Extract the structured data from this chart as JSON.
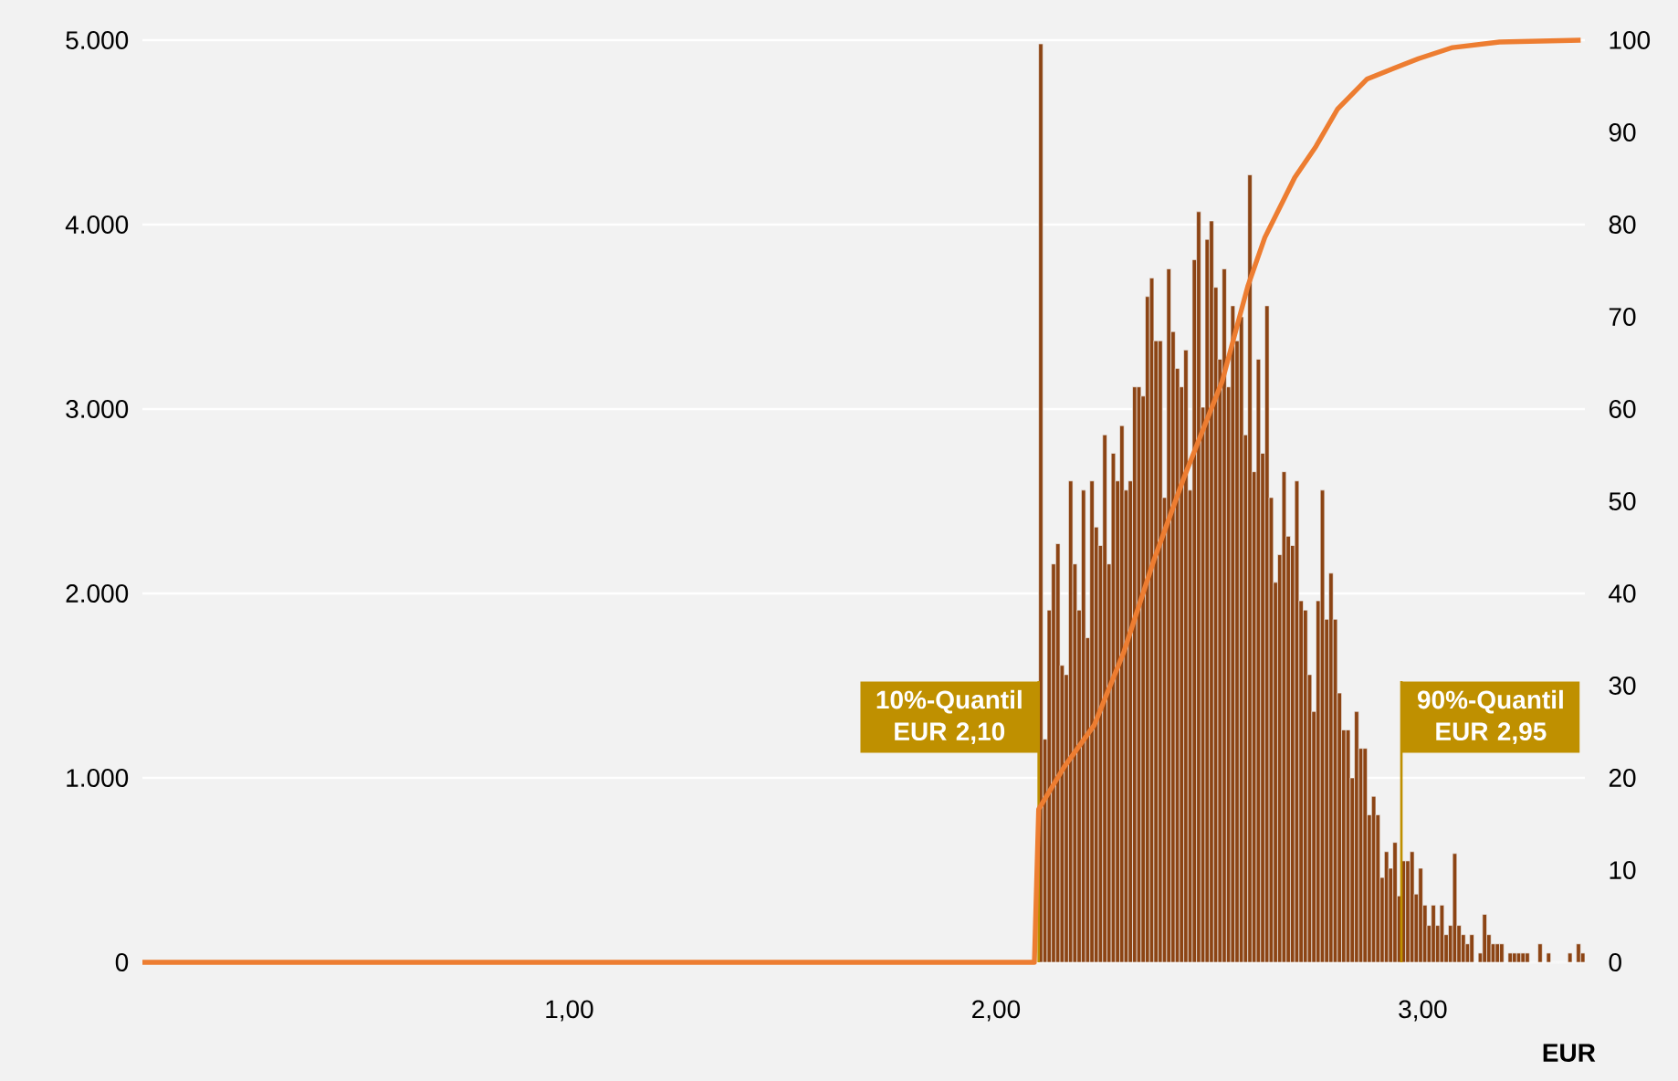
{
  "chart_data": {
    "type": "histogram",
    "xlabel": "EUR",
    "bins": [
      2.1,
      2.11,
      2.12,
      2.13,
      2.14,
      2.15,
      2.16,
      2.17,
      2.18,
      2.19,
      2.2,
      2.21,
      2.22,
      2.23,
      2.24,
      2.25,
      2.26,
      2.27,
      2.28,
      2.29,
      2.3,
      2.31,
      2.32,
      2.33,
      2.34,
      2.35,
      2.36,
      2.37,
      2.38,
      2.39,
      2.4,
      2.41,
      2.42,
      2.43,
      2.44,
      2.45,
      2.46,
      2.47,
      2.48,
      2.49,
      2.5,
      2.51,
      2.52,
      2.53,
      2.54,
      2.55,
      2.56,
      2.57,
      2.58,
      2.59,
      2.6,
      2.61,
      2.62,
      2.63,
      2.64,
      2.65,
      2.66,
      2.67,
      2.68,
      2.69,
      2.7,
      2.71,
      2.72,
      2.73,
      2.74,
      2.75,
      2.76,
      2.77,
      2.78,
      2.79,
      2.8,
      2.81,
      2.82,
      2.83,
      2.84,
      2.85,
      2.86,
      2.87,
      2.88,
      2.89,
      2.9,
      2.91,
      2.92,
      2.93,
      2.94,
      2.95,
      2.96,
      2.97,
      2.98,
      2.99,
      3.0,
      3.01,
      3.02,
      3.03,
      3.04,
      3.05,
      3.06,
      3.07,
      3.08,
      3.09,
      3.1,
      3.11,
      3.12,
      3.13,
      3.14,
      3.15,
      3.16,
      3.17,
      3.18,
      3.19,
      3.2,
      3.21,
      3.22,
      3.23,
      3.24,
      3.25,
      3.26,
      3.27,
      3.28,
      3.29,
      3.3,
      3.31,
      3.32,
      3.33,
      3.34,
      3.35,
      3.36,
      3.37,
      3.38
    ],
    "values": [
      4980,
      1210,
      1910,
      2160,
      2270,
      1610,
      1560,
      2610,
      2160,
      1910,
      2560,
      1760,
      2610,
      2360,
      2260,
      2860,
      2160,
      2760,
      2610,
      2910,
      2560,
      2610,
      3120,
      3120,
      3070,
      3610,
      3710,
      3370,
      3370,
      2520,
      3760,
      3420,
      3220,
      3120,
      3320,
      2560,
      3810,
      4070,
      3010,
      3920,
      4020,
      3660,
      3270,
      3760,
      3120,
      3560,
      3370,
      3500,
      2860,
      4270,
      2660,
      3270,
      2760,
      3560,
      2520,
      2060,
      2210,
      2660,
      2310,
      2260,
      2610,
      1960,
      1910,
      1560,
      1360,
      1960,
      2560,
      1860,
      2110,
      1860,
      1460,
      1260,
      1260,
      1000,
      1360,
      1160,
      1160,
      800,
      900,
      800,
      460,
      600,
      510,
      650,
      360,
      550,
      550,
      600,
      370,
      510,
      310,
      200,
      310,
      200,
      310,
      150,
      200,
      590,
      200,
      150,
      100,
      150,
      0,
      50,
      260,
      150,
      100,
      100,
      100,
      0,
      50,
      50,
      50,
      50,
      50,
      0,
      0,
      100,
      0,
      50,
      0,
      0,
      0,
      0,
      50,
      0,
      100,
      50
    ],
    "color": "#8c4414",
    "series": [
      {
        "type": "line",
        "axis": "y2",
        "color": "#ed7d31",
        "x": [
          0,
          2.09,
          2.1,
          2.16,
          2.23,
          2.3,
          2.37,
          2.44,
          2.53,
          2.59,
          2.63,
          2.7,
          2.75,
          2.8,
          2.87,
          2.99,
          3.07,
          3.18,
          3.37
        ],
        "values": [
          0,
          0,
          16.6,
          21.2,
          25.7,
          33.7,
          43.6,
          52.5,
          63,
          73.3,
          78.6,
          85.1,
          88.5,
          92.5,
          95.8,
          98,
          99.2,
          99.8,
          100
        ]
      }
    ],
    "xlim": [
      0,
      3.38
    ],
    "xticks": [
      {
        "value": 1,
        "label": "1,00"
      },
      {
        "value": 2,
        "label": "2,00"
      },
      {
        "value": 3,
        "label": "3,00"
      }
    ],
    "ylim": [
      0,
      5000
    ],
    "yticks": [
      0,
      {
        "value": 1000,
        "label": "1.000"
      },
      {
        "value": 2000,
        "label": "2.000"
      },
      {
        "value": 3000,
        "label": "3.000"
      },
      {
        "value": 4000,
        "label": "4.000"
      },
      {
        "value": 5000,
        "label": "5.000"
      }
    ],
    "y2lim": [
      0,
      100
    ],
    "y2ticks": [
      0,
      10,
      20,
      30,
      40,
      50,
      60,
      70,
      80,
      90,
      100
    ],
    "ref_lines": [
      {
        "axis": "x",
        "value": 2.1,
        "label": "10%-Quantil EUR 2,10",
        "color": "#bf9000"
      },
      {
        "axis": "x",
        "value": 2.95,
        "label": "90%-Quantil EUR 2,95",
        "color": "#bf9000"
      }
    ],
    "grid": "y"
  }
}
